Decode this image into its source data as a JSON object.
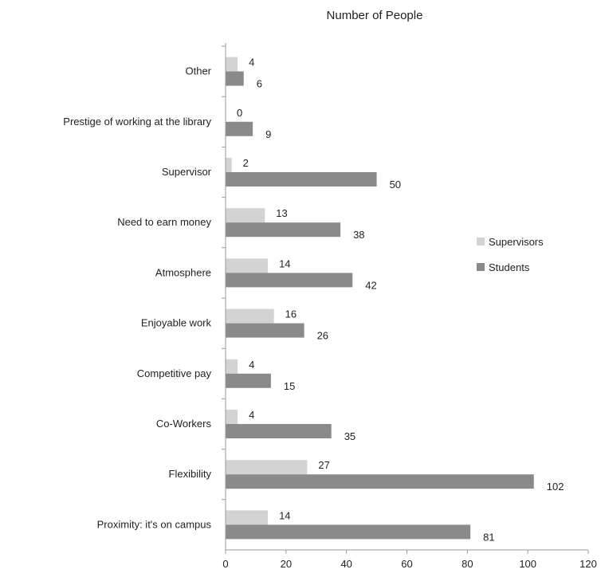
{
  "chart_data": {
    "type": "bar",
    "orientation": "horizontal",
    "title": "Number of People",
    "xlabel": "",
    "ylabel": "",
    "xlim": [
      0,
      120
    ],
    "x_ticks": [
      0,
      20,
      40,
      60,
      80,
      100,
      120
    ],
    "grid": false,
    "legend_position": "right",
    "categories": [
      "Other",
      "Prestige of working at the library",
      "Supervisor",
      "Need to earn money",
      "Atmosphere",
      "Enjoyable work",
      "Competitive pay",
      "Co-Workers",
      "Flexibility",
      "Proximity: it's on campus"
    ],
    "series": [
      {
        "name": "Supervisors",
        "color": "#d3d3d3",
        "values": [
          4,
          0,
          2,
          13,
          14,
          16,
          4,
          4,
          27,
          14
        ]
      },
      {
        "name": "Students",
        "color": "#8a8a8a",
        "values": [
          6,
          9,
          50,
          38,
          42,
          26,
          15,
          35,
          102,
          81
        ]
      }
    ]
  }
}
